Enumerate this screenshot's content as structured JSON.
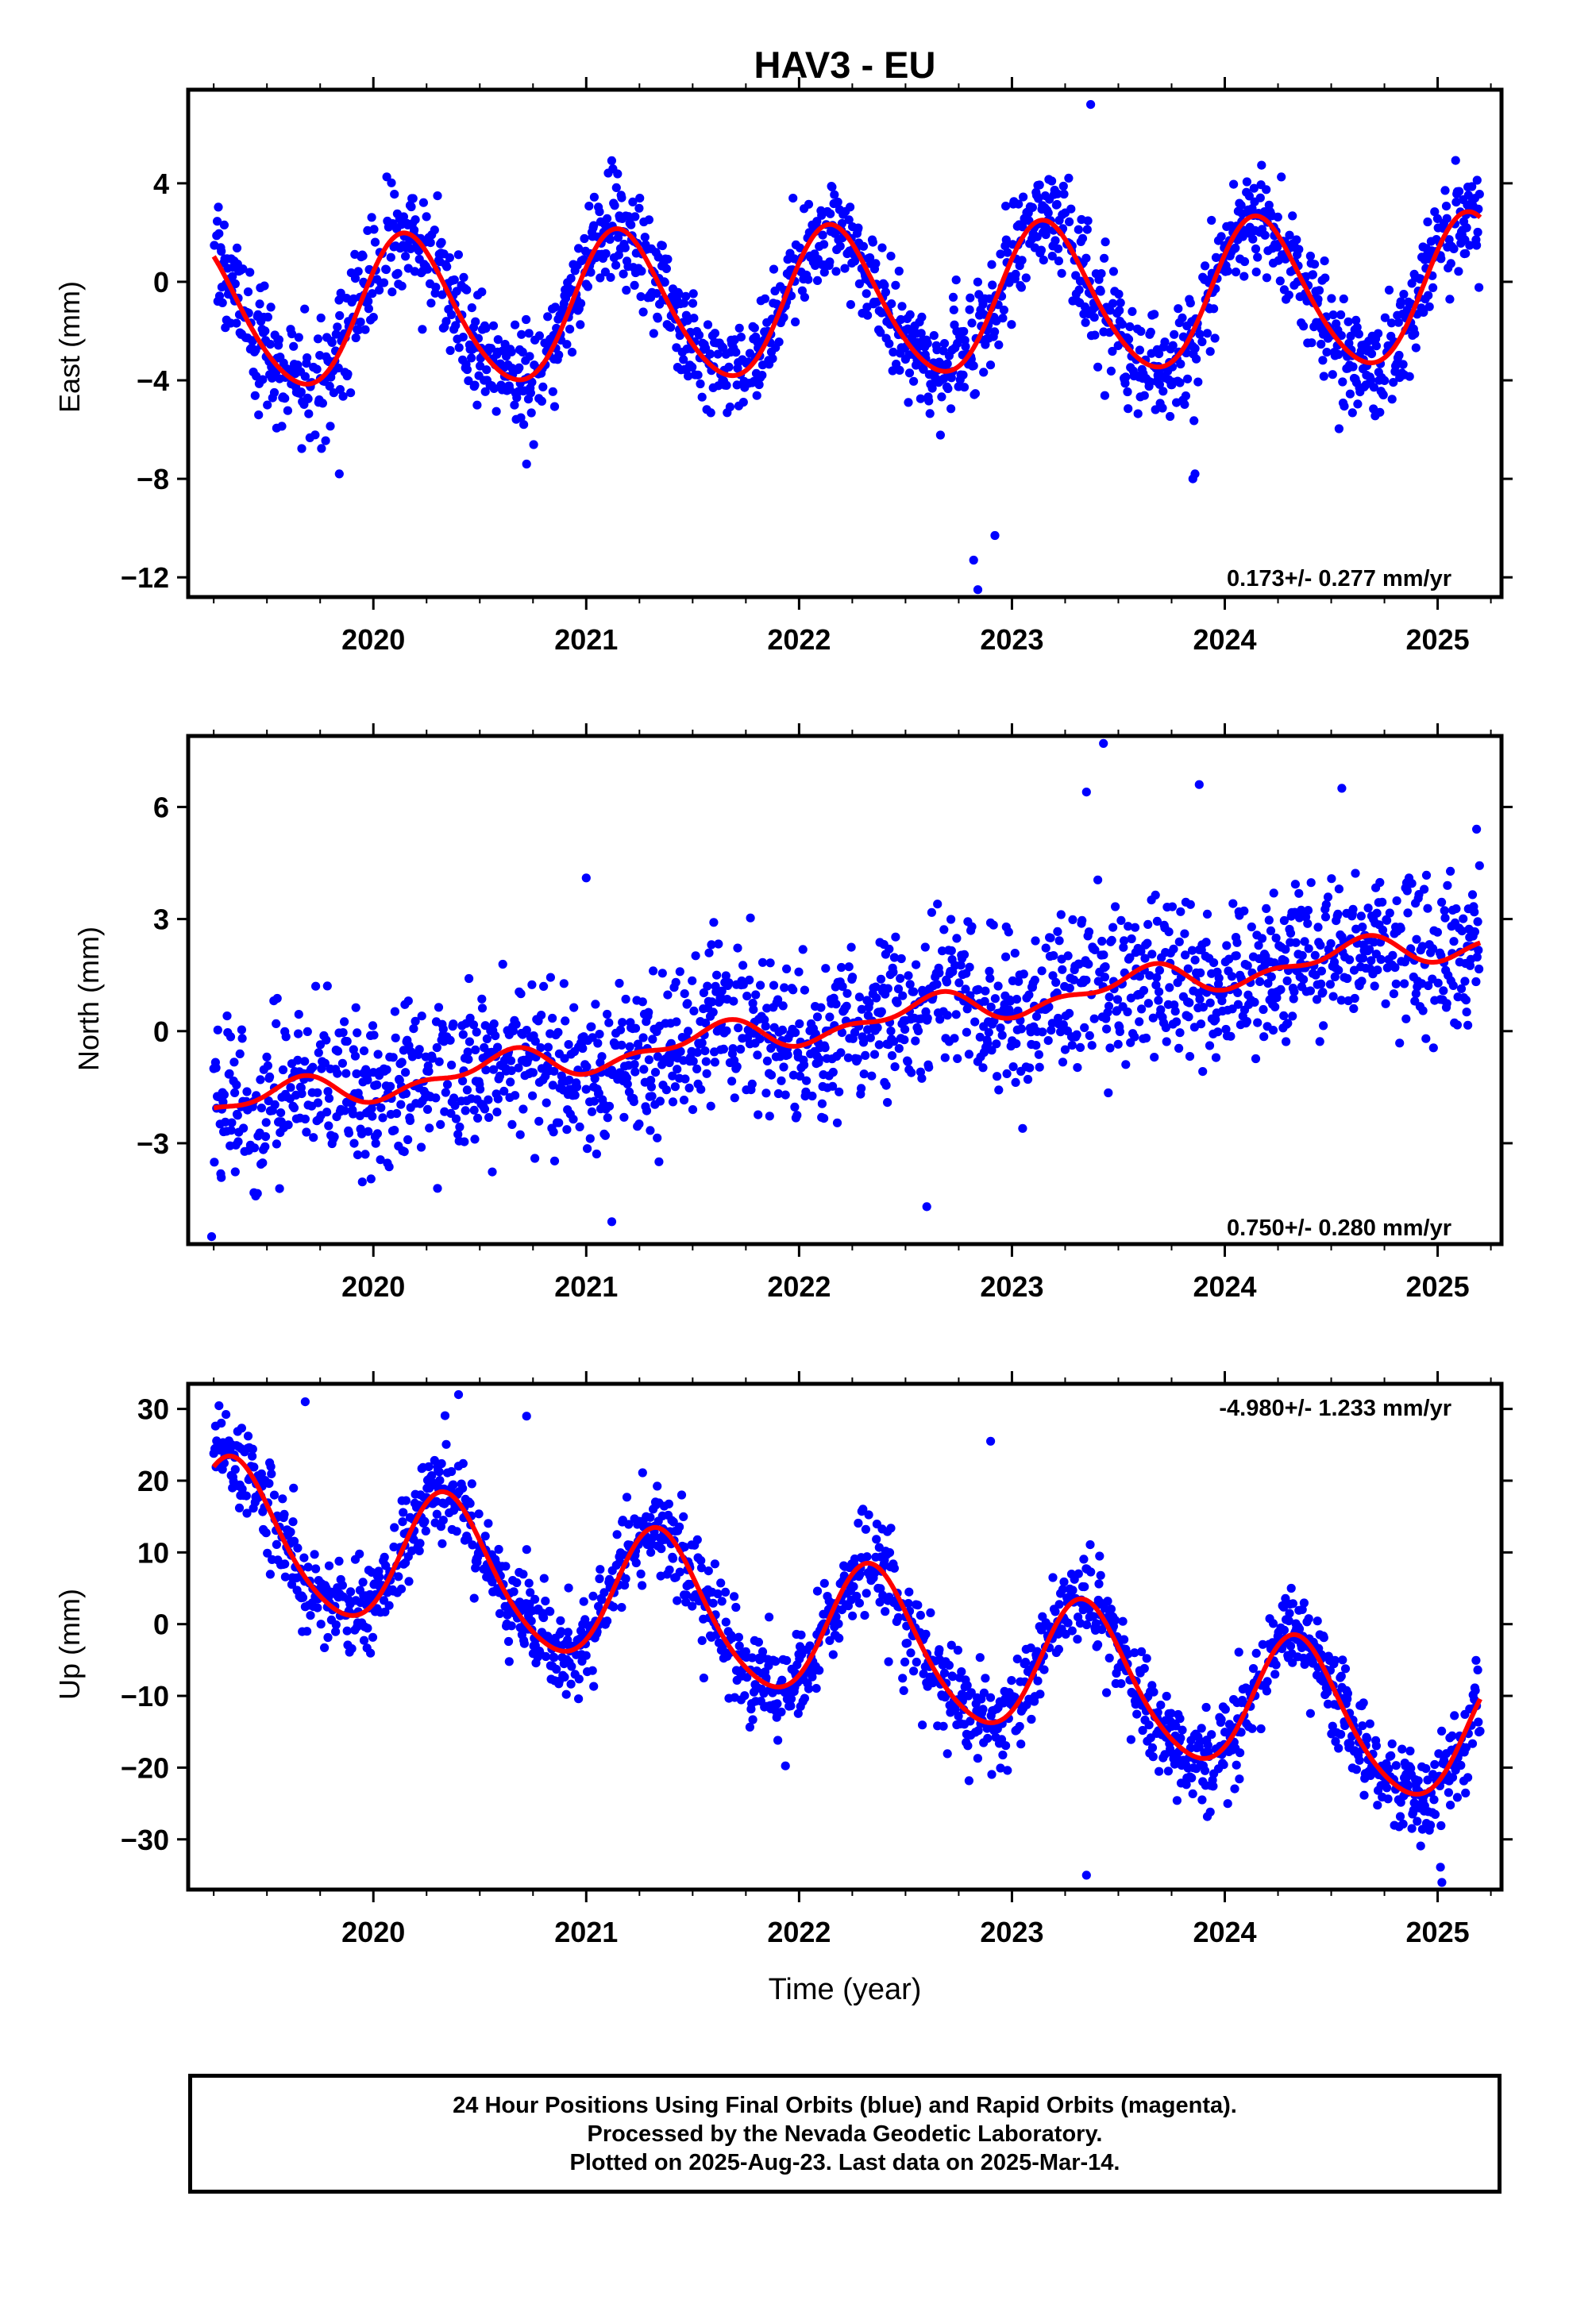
{
  "title": "HAV3 - EU",
  "xlabel": "Time (year)",
  "colors": {
    "data": "#0000ff",
    "model": "#ff0000",
    "frame": "#000000"
  },
  "chart_data": [
    {
      "type": "scatter",
      "id": "east",
      "ylabel": "East (mm)",
      "rate_label": "0.173+/- 0.277 mm/yr",
      "rate_position": "bottom-right",
      "xlim": [
        2019.13,
        2025.3
      ],
      "ylim": [
        -12.8,
        7.8
      ],
      "yticks": [
        -12,
        -8,
        -4,
        0,
        4
      ],
      "ytick_labels": [
        "−12",
        "−8",
        "−4",
        "0",
        "4"
      ],
      "xticks": [
        2020,
        2021,
        2022,
        2023,
        2024,
        2025
      ],
      "xtick_labels": [
        "2020",
        "2021",
        "2022",
        "2023",
        "2024",
        "2025"
      ],
      "model": {
        "offset": -0.9,
        "trend": 0.173,
        "t0": 2022.2,
        "amp_annual": 3.0,
        "phase_annual": 0.16,
        "amp_semi": 0.3,
        "phase_semi": 0.1
      },
      "noise_sd": 1.1,
      "outliers": [
        [
          2022.84,
          -12.5
        ],
        [
          2022.82,
          -11.3
        ],
        [
          2023.85,
          -8.0
        ],
        [
          2023.86,
          -7.8
        ],
        [
          2019.84,
          -7.8
        ],
        [
          2020.72,
          -7.4
        ],
        [
          2023.37,
          7.2
        ],
        [
          2022.92,
          -10.3
        ]
      ]
    },
    {
      "type": "scatter",
      "id": "north",
      "ylabel": "North (mm)",
      "rate_label": "0.750+/- 0.280 mm/yr",
      "rate_position": "bottom-right",
      "xlim": [
        2019.13,
        2025.3
      ],
      "ylim": [
        -5.7,
        7.9
      ],
      "yticks": [
        -3,
        0,
        3,
        6
      ],
      "ytick_labels": [
        "−3",
        "0",
        "3",
        "6"
      ],
      "xticks": [
        2020,
        2021,
        2022,
        2023,
        2024,
        2025
      ],
      "xtick_labels": [
        "2020",
        "2021",
        "2022",
        "2023",
        "2024",
        "2025"
      ],
      "model": {
        "offset": 0.2,
        "trend": 0.75,
        "t0": 2022.2,
        "amp_annual": 0.35,
        "phase_annual": 0.6,
        "amp_semi": 0.2,
        "phase_semi": 0.2
      },
      "noise_sd": 1.05,
      "outliers": [
        [
          2023.43,
          7.7
        ],
        [
          2019.24,
          -5.5
        ],
        [
          2021.0,
          4.1
        ],
        [
          2023.35,
          6.4
        ],
        [
          2023.88,
          6.6
        ],
        [
          2024.55,
          6.5
        ],
        [
          2021.12,
          -5.1
        ],
        [
          2022.6,
          -4.7
        ]
      ]
    },
    {
      "type": "scatter",
      "id": "up",
      "ylabel": "Up (mm)",
      "rate_label": "-4.980+/- 1.233 mm/yr",
      "rate_position": "top-right",
      "xlim": [
        2019.13,
        2025.3
      ],
      "ylim": [
        -37,
        33.5
      ],
      "yticks": [
        -30,
        -20,
        -10,
        0,
        10,
        20,
        30
      ],
      "ytick_labels": [
        "−30",
        "−20",
        "−10",
        "0",
        "10",
        "20",
        "30"
      ],
      "xticks": [
        2020,
        2021,
        2022,
        2023,
        2024,
        2025
      ],
      "xtick_labels": [
        "2020",
        "2021",
        "2022",
        "2023",
        "2024",
        "2025"
      ],
      "model": {
        "offset": -1.5,
        "trend": -4.98,
        "t0": 2022.2,
        "amp_annual": 9.6,
        "phase_annual": 0.35,
        "amp_semi": 1.2,
        "phase_semi": 0.3
      },
      "noise_sd": 3.3,
      "outliers": [
        [
          2020.4,
          32.0
        ],
        [
          2023.35,
          -35.0
        ],
        [
          2025.02,
          -36.0
        ],
        [
          2019.68,
          31.0
        ],
        [
          2020.72,
          29.0
        ],
        [
          2022.9,
          25.5
        ]
      ]
    }
  ],
  "footer": {
    "line1": "24 Hour Positions Using Final Orbits (blue) and Rapid Orbits (magenta).",
    "line2": "Processed by the Nevada Geodetic Laboratory.",
    "line3": "Plotted on 2025-Aug-23. Last data on 2025-Mar-14."
  }
}
